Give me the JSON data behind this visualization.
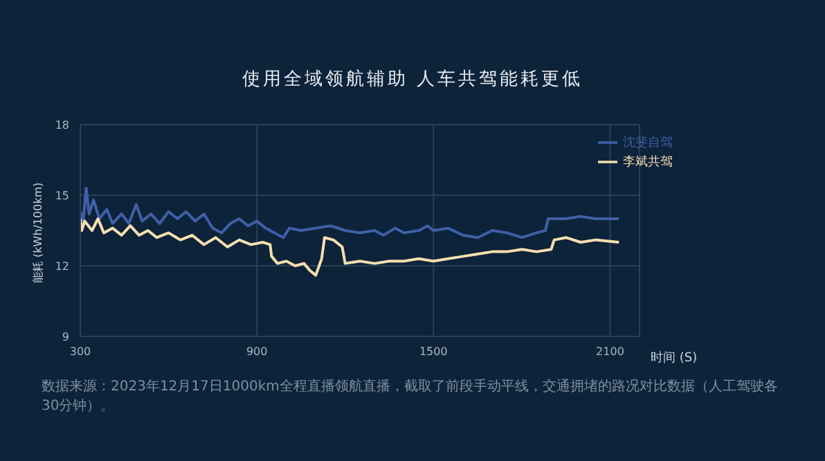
{
  "chart_data": {
    "type": "line",
    "title": "使用全域领航辅助 人车共驾能耗更低",
    "xlabel": "时间 (S)",
    "ylabel": "能耗 (kWh/100km)",
    "annotations": [
      "数据来源：2023年12月17日1000km全程直播领航直播，截取了前段手动平线，交通拥堵的路况对比数据（人工驾驶各30分钟）。"
    ],
    "xlim": [
      300,
      2200
    ],
    "xticks": [
      300,
      900,
      1500,
      2100
    ],
    "ylim": [
      9,
      18
    ],
    "yticks": [
      9,
      12,
      15,
      18
    ],
    "grid": true,
    "legend": "top right",
    "marker": "none",
    "line_style": "solid",
    "series": [
      {
        "name": "沈斐自驾",
        "color": "#3f5fa8",
        "x": [
          300,
          310,
          320,
          330,
          345,
          365,
          390,
          410,
          440,
          465,
          490,
          510,
          540,
          570,
          600,
          630,
          660,
          690,
          720,
          750,
          780,
          810,
          840,
          870,
          900,
          930,
          960,
          990,
          1010,
          1050,
          1100,
          1150,
          1200,
          1250,
          1300,
          1330,
          1370,
          1400,
          1450,
          1480,
          1500,
          1550,
          1600,
          1650,
          1700,
          1750,
          1800,
          1850,
          1880,
          1890,
          1950,
          2000,
          2050,
          2130
        ],
        "values": [
          14.3,
          13.9,
          15.3,
          14.2,
          14.8,
          14.0,
          14.4,
          13.8,
          14.2,
          13.8,
          14.6,
          13.9,
          14.2,
          13.8,
          14.3,
          14.0,
          14.3,
          13.9,
          14.2,
          13.6,
          13.4,
          13.8,
          14.0,
          13.7,
          13.9,
          13.6,
          13.4,
          13.2,
          13.6,
          13.5,
          13.6,
          13.7,
          13.5,
          13.4,
          13.5,
          13.3,
          13.6,
          13.4,
          13.5,
          13.7,
          13.5,
          13.6,
          13.3,
          13.2,
          13.5,
          13.4,
          13.2,
          13.4,
          13.5,
          14.0,
          14.0,
          14.1,
          14.0,
          14.0
        ]
      },
      {
        "name": "李斌共驾",
        "color": "#f5deb0",
        "x": [
          300,
          305,
          315,
          340,
          360,
          380,
          410,
          440,
          470,
          500,
          530,
          560,
          600,
          640,
          680,
          720,
          760,
          800,
          840,
          880,
          920,
          945,
          950,
          970,
          1000,
          1030,
          1060,
          1080,
          1100,
          1120,
          1130,
          1160,
          1190,
          1200,
          1250,
          1300,
          1350,
          1400,
          1450,
          1500,
          1550,
          1600,
          1650,
          1700,
          1750,
          1800,
          1850,
          1900,
          1910,
          1950,
          2000,
          2050,
          2130
        ],
        "values": [
          14.0,
          13.5,
          13.9,
          13.5,
          14.0,
          13.4,
          13.6,
          13.3,
          13.7,
          13.3,
          13.5,
          13.2,
          13.4,
          13.1,
          13.3,
          12.9,
          13.2,
          12.8,
          13.1,
          12.9,
          13.0,
          12.9,
          12.4,
          12.1,
          12.2,
          12.0,
          12.1,
          11.8,
          11.6,
          12.3,
          13.2,
          13.1,
          12.8,
          12.1,
          12.2,
          12.1,
          12.2,
          12.2,
          12.3,
          12.2,
          12.3,
          12.4,
          12.5,
          12.6,
          12.6,
          12.7,
          12.6,
          12.7,
          13.1,
          13.2,
          13.0,
          13.1,
          13.0
        ]
      }
    ]
  }
}
